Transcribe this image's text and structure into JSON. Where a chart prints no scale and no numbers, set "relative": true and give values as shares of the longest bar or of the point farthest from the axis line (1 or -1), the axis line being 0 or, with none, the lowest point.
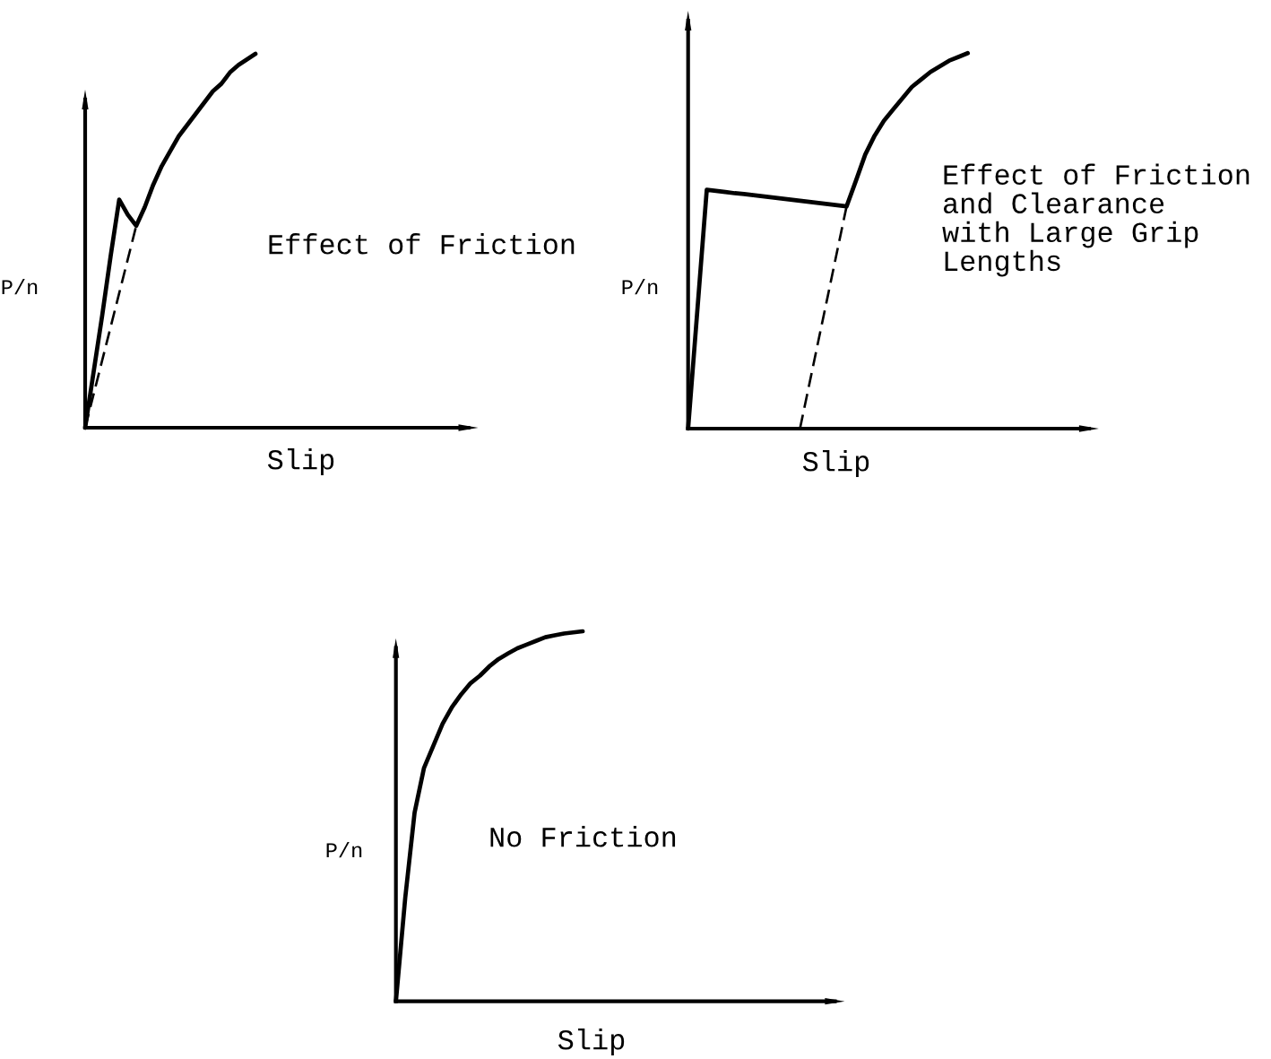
{
  "chart_data": [
    {
      "type": "line",
      "relative": true,
      "title": "Effect of Friction",
      "xlabel": "Slip",
      "ylabel": "P/n",
      "categories": [
        null,
        null,
        null,
        null,
        null,
        null,
        null,
        null,
        null,
        null,
        null,
        null,
        null,
        null,
        null,
        null,
        null,
        null,
        null,
        null,
        null,
        null,
        null,
        null,
        null,
        null,
        null,
        null,
        null,
        null,
        null,
        null,
        null,
        null,
        null,
        null,
        null,
        null,
        null,
        null,
        null,
        null,
        null,
        null,
        null,
        null
      ],
      "series": [
        {
          "color": "#000000",
          "line_style": "solid",
          "values": [
            0,
            0.15,
            0.3,
            0.46,
            0.61,
            0.57,
            0.54,
            0.59,
            0.65,
            0.7,
            0.74,
            0.78,
            0.81,
            0.84,
            0.87,
            0.9,
            0.92,
            0.95,
            0.97,
            0.985,
            1,
            null,
            null,
            null,
            null,
            null,
            null,
            null,
            null,
            null,
            null,
            null,
            null,
            null,
            null,
            null,
            null,
            null,
            null,
            null,
            null,
            null,
            null,
            null,
            null,
            null
          ]
        },
        {
          "color": "#000000",
          "line_style": "dashed",
          "values": [
            0,
            0.09,
            0.18,
            0.27,
            0.36,
            0.45,
            0.54,
            null,
            null,
            null,
            null,
            null,
            null,
            null,
            null,
            null,
            null,
            null,
            null,
            null,
            null,
            null,
            null,
            null,
            null,
            null,
            null,
            null,
            null,
            null,
            null,
            null,
            null,
            null,
            null,
            null,
            null,
            null,
            null,
            null,
            null,
            null,
            null,
            null,
            null,
            null
          ]
        }
      ]
    },
    {
      "type": "line",
      "relative": true,
      "title": "Effect of Friction\nand Clearance\nwith Large Grip\nLengths",
      "xlabel": "Slip",
      "ylabel": "P/n",
      "categories": [
        null,
        null,
        null,
        null,
        null,
        null,
        null,
        null,
        null,
        null,
        null,
        null,
        null,
        null,
        null,
        null,
        null,
        null,
        null,
        null,
        null,
        null,
        null,
        null,
        null,
        null,
        null,
        null,
        null,
        null,
        null,
        null,
        null,
        null,
        null,
        null,
        null,
        null,
        null,
        null,
        null,
        null,
        null,
        null
      ],
      "series": [
        {
          "color": "#000000",
          "line_style": "solid",
          "values": [
            0,
            0.318,
            0.636,
            0.633,
            0.63,
            0.627,
            0.625,
            0.622,
            0.619,
            0.616,
            0.613,
            0.61,
            0.607,
            0.604,
            0.601,
            0.598,
            0.595,
            0.592,
            0.66,
            0.73,
            0.78,
            0.82,
            0.85,
            0.88,
            0.91,
            0.93,
            0.95,
            0.965,
            0.98,
            0.99,
            1,
            null,
            null,
            null,
            null,
            null,
            null,
            null,
            null,
            null,
            null,
            null,
            null,
            null
          ]
        },
        {
          "color": "#000000",
          "line_style": "dashed",
          "values": [
            null,
            null,
            null,
            null,
            null,
            null,
            null,
            null,
            null,
            null,
            null,
            null,
            0,
            0.118,
            0.237,
            0.355,
            0.474,
            0.592,
            null,
            null,
            null,
            null,
            null,
            null,
            null,
            null,
            null,
            null,
            null,
            null,
            null,
            null,
            null,
            null,
            null,
            null,
            null,
            null,
            null,
            null,
            null,
            null,
            null,
            null
          ]
        }
      ]
    },
    {
      "type": "line",
      "relative": true,
      "title": "No Friction",
      "xlabel": "Slip",
      "ylabel": "P/n",
      "categories": [
        null,
        null,
        null,
        null,
        null,
        null,
        null,
        null,
        null,
        null,
        null,
        null,
        null,
        null,
        null,
        null,
        null,
        null,
        null,
        null,
        null,
        null,
        null,
        null,
        null,
        null,
        null,
        null,
        null,
        null,
        null,
        null,
        null,
        null,
        null,
        null,
        null,
        null,
        null,
        null,
        null,
        null,
        null,
        null,
        null,
        null,
        null,
        null
      ],
      "series": [
        {
          "color": "#000000",
          "line_style": "solid",
          "values": [
            0,
            0.28,
            0.51,
            0.63,
            0.69,
            0.75,
            0.795,
            0.83,
            0.86,
            0.88,
            0.905,
            0.925,
            0.94,
            0.954,
            0.964,
            0.974,
            0.984,
            0.989,
            0.994,
            0.997,
            1,
            null,
            null,
            null,
            null,
            null,
            null,
            null,
            null,
            null,
            null,
            null,
            null,
            null,
            null,
            null,
            null,
            null,
            null,
            null,
            null,
            null,
            null,
            null,
            null,
            null,
            null,
            null
          ]
        }
      ]
    }
  ]
}
